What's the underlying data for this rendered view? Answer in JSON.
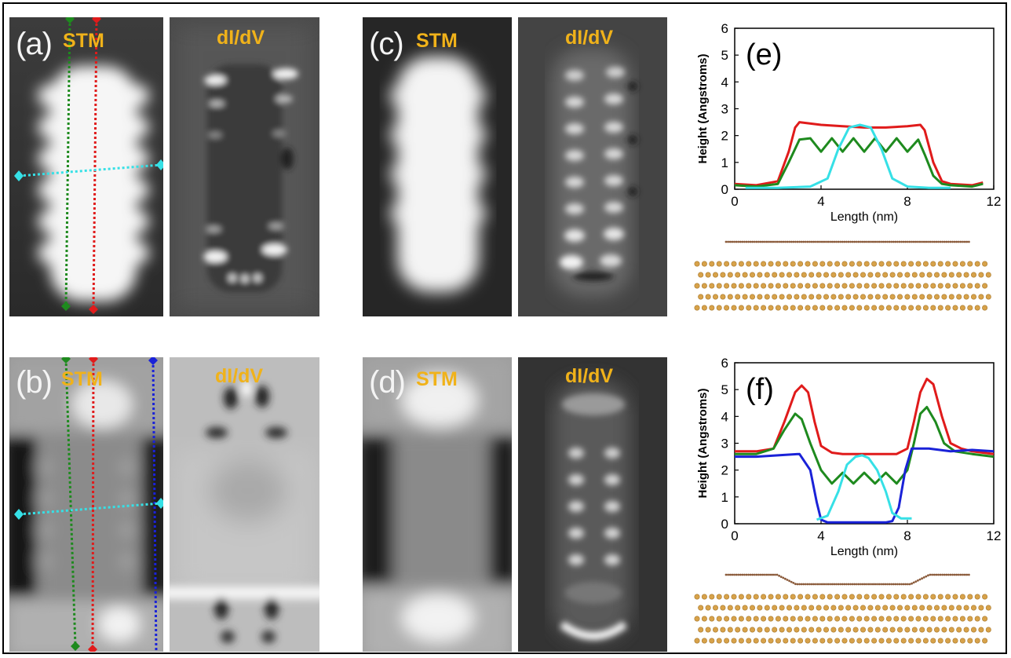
{
  "panels": {
    "a": {
      "label": "(a)",
      "stm_tag": "STM",
      "didv_tag": "dI/dV"
    },
    "b": {
      "label": "(b)",
      "stm_tag": "STM",
      "didv_tag": "dI/dV"
    },
    "c": {
      "label": "(c)",
      "stm_tag": "STM",
      "didv_tag": "dI/dV"
    },
    "d": {
      "label": "(d)",
      "stm_tag": "STM",
      "didv_tag": "dI/dV"
    }
  },
  "line_colors": {
    "green": "#1e8a1e",
    "red": "#e01b1b",
    "cyan": "#36e0e6",
    "blue": "#1a22d8"
  },
  "chart_data": [
    {
      "type": "line",
      "panel_label": "(e)",
      "xlabel": "Length (nm)",
      "ylabel": "Height (Angstroms)",
      "xlim": [
        0,
        12
      ],
      "ylim": [
        0,
        6
      ],
      "xticks": [
        0,
        4,
        8,
        12
      ],
      "yticks": [
        0,
        1,
        2,
        3,
        4,
        5,
        6
      ],
      "series": [
        {
          "color": "#e01b1b",
          "x": [
            0,
            1,
            2,
            2.5,
            2.8,
            3,
            4,
            5,
            6,
            7,
            8,
            8.6,
            8.8,
            9.2,
            9.6,
            10,
            11,
            11.5
          ],
          "y": [
            0.2,
            0.15,
            0.3,
            1.4,
            2.3,
            2.5,
            2.4,
            2.35,
            2.3,
            2.3,
            2.35,
            2.4,
            2.2,
            1.0,
            0.3,
            0.2,
            0.15,
            0.25
          ]
        },
        {
          "color": "#1e8a1e",
          "x": [
            0,
            1,
            2,
            2.5,
            3,
            3.5,
            4,
            4.5,
            5,
            5.5,
            6,
            6.5,
            7,
            7.5,
            8,
            8.5,
            8.8,
            9.2,
            9.6,
            10,
            11,
            11.5
          ],
          "y": [
            0.15,
            0.1,
            0.2,
            1.0,
            1.85,
            1.9,
            1.4,
            1.9,
            1.4,
            1.9,
            1.4,
            1.9,
            1.4,
            1.9,
            1.4,
            1.85,
            1.3,
            0.5,
            0.2,
            0.15,
            0.1,
            0.2
          ]
        },
        {
          "color": "#36e0e6",
          "x": [
            0.5,
            2,
            3.5,
            4.3,
            4.8,
            5.3,
            5.8,
            6.3,
            6.8,
            7.3,
            8,
            9,
            10
          ],
          "y": [
            0.05,
            0.05,
            0.1,
            0.4,
            1.5,
            2.3,
            2.4,
            2.3,
            1.5,
            0.4,
            0.1,
            0.05,
            0.05
          ]
        }
      ]
    },
    {
      "type": "line",
      "panel_label": "(f)",
      "xlabel": "Length (nm)",
      "ylabel": "Height (Angstroms)",
      "xlim": [
        0,
        12
      ],
      "ylim": [
        0,
        6
      ],
      "xticks": [
        0,
        4,
        8,
        12
      ],
      "yticks": [
        0,
        1,
        2,
        3,
        4,
        5,
        6
      ],
      "series": [
        {
          "color": "#e01b1b",
          "x": [
            0,
            1,
            1.8,
            2.3,
            2.8,
            3.1,
            3.4,
            3.7,
            4,
            4.5,
            5,
            6,
            7,
            7.5,
            8,
            8.3,
            8.6,
            8.9,
            9.2,
            9.6,
            10,
            10.5,
            11,
            12
          ],
          "y": [
            2.7,
            2.7,
            2.8,
            3.8,
            4.9,
            5.15,
            4.9,
            3.8,
            2.9,
            2.65,
            2.6,
            2.6,
            2.6,
            2.6,
            2.8,
            3.8,
            4.9,
            5.4,
            5.2,
            4.0,
            3.0,
            2.8,
            2.7,
            2.6
          ]
        },
        {
          "color": "#1e8a1e",
          "x": [
            0,
            1,
            1.8,
            2.3,
            2.8,
            3.1,
            3.5,
            4,
            4.5,
            5,
            5.5,
            6,
            6.5,
            7,
            7.5,
            8,
            8.3,
            8.6,
            8.9,
            9.3,
            9.7,
            10.2,
            11,
            12
          ],
          "y": [
            2.6,
            2.6,
            2.8,
            3.5,
            4.1,
            3.9,
            3.0,
            2.0,
            1.5,
            1.9,
            1.5,
            1.9,
            1.5,
            1.9,
            1.5,
            2.0,
            3.0,
            4.1,
            4.35,
            3.8,
            3.0,
            2.7,
            2.6,
            2.5
          ]
        },
        {
          "color": "#1a22d8",
          "x": [
            0,
            1,
            2,
            3,
            3.5,
            3.8,
            4,
            4.3,
            5,
            6,
            7,
            7.3,
            7.6,
            7.9,
            8.2,
            9,
            10,
            11,
            12
          ],
          "y": [
            2.5,
            2.5,
            2.55,
            2.6,
            2.0,
            0.8,
            0.15,
            0.05,
            0.05,
            0.05,
            0.05,
            0.1,
            0.6,
            2.0,
            2.8,
            2.8,
            2.7,
            2.75,
            2.7
          ]
        },
        {
          "color": "#36e0e6",
          "x": [
            3.8,
            4.3,
            4.8,
            5.2,
            5.6,
            5.9,
            6.2,
            6.6,
            7,
            7.3,
            7.7,
            8.2
          ],
          "y": [
            0.15,
            0.3,
            1.2,
            2.2,
            2.5,
            2.55,
            2.45,
            2.0,
            1.2,
            0.4,
            0.2,
            0.2
          ]
        }
      ]
    }
  ]
}
